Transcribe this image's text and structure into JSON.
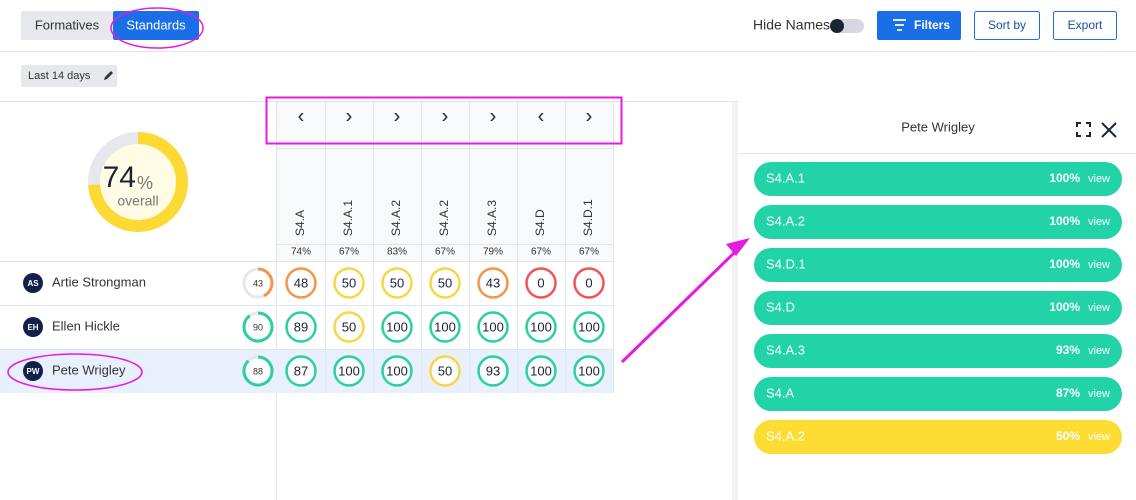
{
  "tabs": [
    "Formatives",
    "Standards"
  ],
  "toolbar": {
    "hide_names": "Hide Names",
    "filters": "Filters",
    "sort_by": "Sort by",
    "export": "Export"
  },
  "date_range": "Last 14 days",
  "overall": {
    "value": 74,
    "unit": "%",
    "label": "overall"
  },
  "columns": [
    {
      "arrow": "‹",
      "name": "S4.A",
      "pct": "74%"
    },
    {
      "arrow": "›",
      "name": "S4.A.1",
      "pct": "67%"
    },
    {
      "arrow": "›",
      "name": "S4.A.2",
      "pct": "83%"
    },
    {
      "arrow": "›",
      "name": "S4.A.2",
      "pct": "67%"
    },
    {
      "arrow": "›",
      "name": "S4.A.3",
      "pct": "79%"
    },
    {
      "arrow": "‹",
      "name": "S4.D",
      "pct": "67%"
    },
    {
      "arrow": "›",
      "name": "S4.D.1",
      "pct": "67%"
    }
  ],
  "students": [
    {
      "initials": "AS",
      "name": "Artie Strongman",
      "avg": 43,
      "scores": [
        48,
        50,
        50,
        50,
        43,
        0,
        0
      ]
    },
    {
      "initials": "EH",
      "name": "Ellen Hickle",
      "avg": 90,
      "scores": [
        89,
        50,
        100,
        100,
        100,
        100,
        100
      ]
    },
    {
      "initials": "PW",
      "name": "Pete Wrigley",
      "avg": 88,
      "scores": [
        87,
        100,
        100,
        50,
        93,
        100,
        100
      ]
    }
  ],
  "panel": {
    "title": "Pete Wrigley",
    "rows": [
      {
        "name": "S4.A.1",
        "pct": "100%",
        "link": "view",
        "color": "#22d3a8"
      },
      {
        "name": "S4.A.2",
        "pct": "100%",
        "link": "view",
        "color": "#22d3a8"
      },
      {
        "name": "S4.D.1",
        "pct": "100%",
        "link": "view",
        "color": "#22d3a8"
      },
      {
        "name": "S4.D",
        "pct": "100%",
        "link": "view",
        "color": "#22d3a8"
      },
      {
        "name": "S4.A.3",
        "pct": "93%",
        "link": "view",
        "color": "#22d3a8"
      },
      {
        "name": "S4.A",
        "pct": "87%",
        "link": "view",
        "color": "#22d3a8"
      },
      {
        "name": "S4.A.2",
        "pct": "50%",
        "link": "view",
        "color": "#fddd33"
      }
    ]
  }
}
